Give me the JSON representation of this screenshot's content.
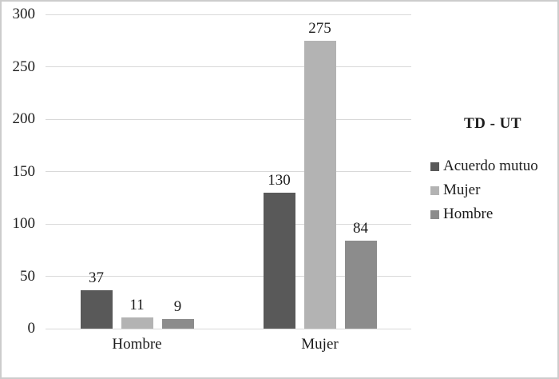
{
  "chart_data": {
    "type": "bar",
    "title": "",
    "categories": [
      "Hombre",
      "Mujer"
    ],
    "series": [
      {
        "name": "Acuerdo mutuo",
        "color": "#595959",
        "values": [
          37,
          130
        ]
      },
      {
        "name": "Mujer",
        "color": "#b3b3b3",
        "values": [
          11,
          275
        ]
      },
      {
        "name": "Hombre",
        "color": "#8c8c8c",
        "values": [
          9,
          84
        ]
      }
    ],
    "ylim": [
      0,
      300
    ],
    "yticks": [
      0,
      50,
      100,
      150,
      200,
      250,
      300
    ],
    "grid": true,
    "data_labels": true,
    "legend_title": "TD - UT",
    "legend_position": "right",
    "gridline_color": "#d9d9d9",
    "background_color": "#ffffff",
    "border_color": "#cccccc"
  }
}
